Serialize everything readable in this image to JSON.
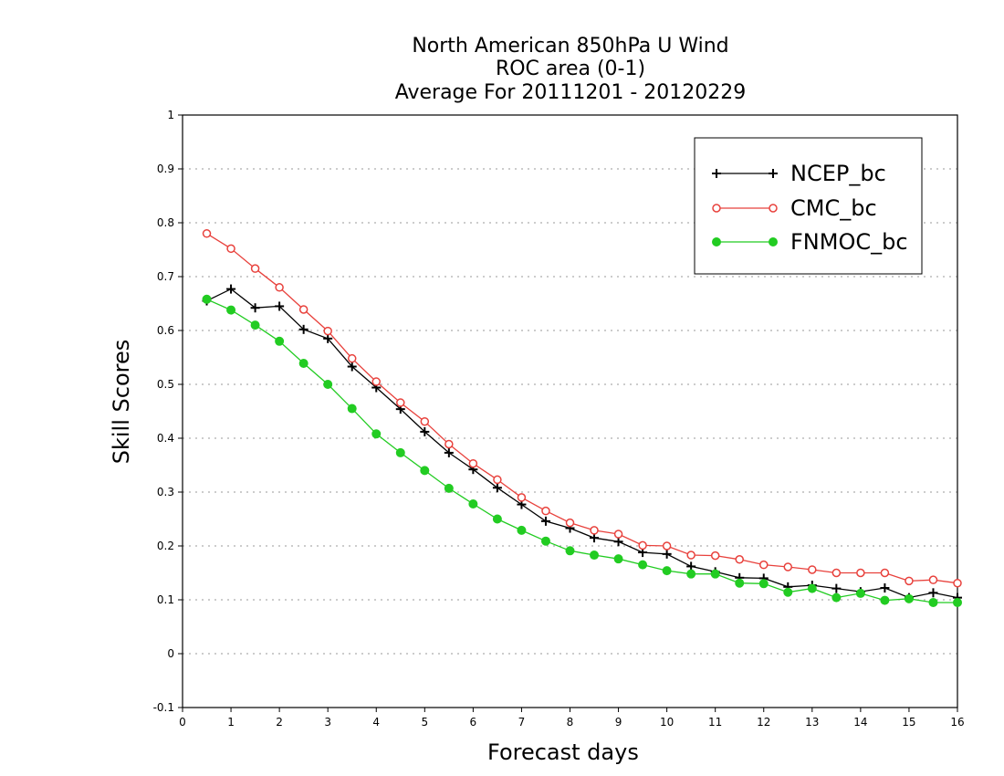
{
  "chart_data": {
    "type": "line",
    "title": "North American 850hPa U Wind",
    "subtitle": "ROC area (0-1)",
    "subtitle2": "Average For 20111201 - 20120229",
    "xlabel": "Forecast days",
    "ylabel": "Skill Scores",
    "xlim": [
      0,
      16
    ],
    "ylim": [
      -0.1,
      1
    ],
    "x_ticks": [
      "0",
      "1",
      "2",
      "3",
      "4",
      "5",
      "6",
      "7",
      "8",
      "9",
      "10",
      "11",
      "12",
      "13",
      "14",
      "15",
      "16"
    ],
    "y_ticks": [
      "-0.1",
      "0",
      "0.1",
      "0.2",
      "0.3",
      "0.4",
      "0.5",
      "0.6",
      "0.7",
      "0.8",
      "0.9",
      "1"
    ],
    "grid": true,
    "legend_position": "top-right",
    "x": [
      0.5,
      1,
      1.5,
      2,
      2.5,
      3,
      3.5,
      4,
      4.5,
      5,
      5.5,
      6,
      6.5,
      7,
      7.5,
      8,
      8.5,
      9,
      9.5,
      10,
      10.5,
      11,
      11.5,
      12,
      12.5,
      13,
      13.5,
      14,
      14.5,
      15,
      15.5,
      16
    ],
    "series": [
      {
        "name": "NCEP_bc",
        "color": "#000000",
        "marker": "plus",
        "values": [
          0.655,
          0.677,
          0.642,
          0.645,
          0.602,
          0.585,
          0.533,
          0.494,
          0.454,
          0.412,
          0.373,
          0.342,
          0.308,
          0.277,
          0.246,
          0.233,
          0.215,
          0.208,
          0.188,
          0.185,
          0.162,
          0.152,
          0.141,
          0.14,
          0.124,
          0.127,
          0.121,
          0.115,
          0.122,
          0.104,
          0.113,
          0.104
        ]
      },
      {
        "name": "CMC_bc",
        "color": "#e8413c",
        "marker": "open-circle",
        "values": [
          0.78,
          0.752,
          0.715,
          0.68,
          0.639,
          0.599,
          0.548,
          0.505,
          0.466,
          0.431,
          0.389,
          0.353,
          0.323,
          0.29,
          0.265,
          0.243,
          0.229,
          0.222,
          0.201,
          0.2,
          0.183,
          0.182,
          0.175,
          0.165,
          0.161,
          0.156,
          0.15,
          0.15,
          0.15,
          0.135,
          0.137,
          0.131
        ]
      },
      {
        "name": "FNMOC_bc",
        "color": "#22cc22",
        "marker": "filled-circle",
        "values": [
          0.658,
          0.638,
          0.61,
          0.58,
          0.539,
          0.5,
          0.455,
          0.408,
          0.373,
          0.34,
          0.307,
          0.278,
          0.25,
          0.229,
          0.209,
          0.191,
          0.183,
          0.176,
          0.165,
          0.154,
          0.148,
          0.148,
          0.131,
          0.13,
          0.114,
          0.121,
          0.104,
          0.112,
          0.099,
          0.102,
          0.095,
          0.095
        ]
      }
    ]
  }
}
